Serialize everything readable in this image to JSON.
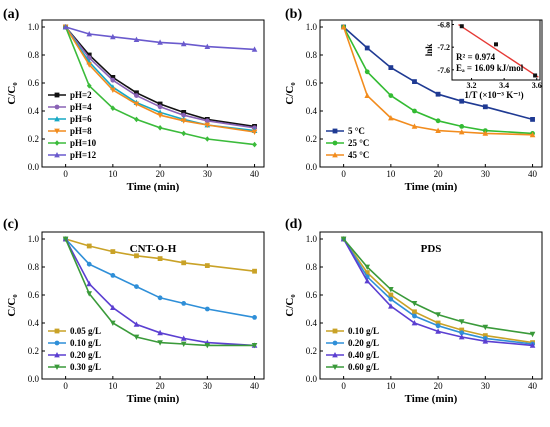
{
  "chart_data": [
    {
      "panel": "(a)",
      "type": "line",
      "title": "",
      "xlabel": "Time (min)",
      "ylabel": "C/C₀",
      "xlim": [
        -5,
        42
      ],
      "ylim": [
        0.0,
        1.05
      ],
      "xticks": [
        0,
        10,
        20,
        30,
        40
      ],
      "yticks": [
        0.0,
        0.2,
        0.4,
        0.6,
        0.8,
        1.0
      ],
      "legend_position": "bottom-left",
      "x": [
        0,
        5,
        10,
        15,
        20,
        25,
        30,
        40
      ],
      "series": [
        {
          "name": "pH=2",
          "color": "#111111",
          "values": [
            1.0,
            0.8,
            0.64,
            0.53,
            0.45,
            0.39,
            0.34,
            0.29
          ]
        },
        {
          "name": "pH=4",
          "color": "#8a63b6",
          "values": [
            1.0,
            0.78,
            0.62,
            0.51,
            0.43,
            0.37,
            0.33,
            0.28
          ]
        },
        {
          "name": "pH=6",
          "color": "#16a8c4",
          "values": [
            1.0,
            0.75,
            0.57,
            0.46,
            0.39,
            0.34,
            0.3,
            0.26
          ]
        },
        {
          "name": "pH=8",
          "color": "#f28c1e",
          "values": [
            1.0,
            0.73,
            0.55,
            0.45,
            0.37,
            0.33,
            0.3,
            0.25
          ]
        },
        {
          "name": "pH=10",
          "color": "#3bbb3b",
          "values": [
            1.0,
            0.58,
            0.42,
            0.34,
            0.28,
            0.24,
            0.2,
            0.16
          ]
        },
        {
          "name": "pH=12",
          "color": "#6a5acd",
          "values": [
            1.0,
            0.95,
            0.93,
            0.91,
            0.89,
            0.88,
            0.86,
            0.84
          ]
        }
      ]
    },
    {
      "panel": "(b)",
      "type": "line",
      "title": "",
      "xlabel": "Time (min)",
      "ylabel": "C/C₀",
      "xlim": [
        -5,
        42
      ],
      "ylim": [
        0.0,
        1.05
      ],
      "xticks": [
        0,
        10,
        20,
        30,
        40
      ],
      "yticks": [
        0.0,
        0.2,
        0.4,
        0.6,
        0.8,
        1.0
      ],
      "legend_position": "bottom-left",
      "x": [
        0,
        5,
        10,
        15,
        20,
        25,
        30,
        40
      ],
      "series": [
        {
          "name": "5 °C",
          "color": "#1f3a93",
          "values": [
            1.0,
            0.85,
            0.71,
            0.61,
            0.52,
            0.47,
            0.43,
            0.34
          ]
        },
        {
          "name": "25 °C",
          "color": "#33bb33",
          "values": [
            1.0,
            0.68,
            0.51,
            0.4,
            0.33,
            0.29,
            0.26,
            0.24
          ]
        },
        {
          "name": "45 °C",
          "color": "#f28c1e",
          "values": [
            1.0,
            0.51,
            0.35,
            0.29,
            0.26,
            0.25,
            0.24,
            0.23
          ]
        }
      ],
      "inset": {
        "type": "scatter",
        "xlabel": "1/T (×10⁻³ K⁻¹)",
        "ylabel": "lnk",
        "xlim": [
          3.08,
          3.62
        ],
        "ylim": [
          -7.78,
          -6.72
        ],
        "xticks": [
          3.2,
          3.4,
          3.6
        ],
        "yticks": [
          -6.8,
          -7.2,
          -7.6
        ],
        "points": [
          {
            "x": 3.14,
            "y": -6.83
          },
          {
            "x": 3.35,
            "y": -7.15
          },
          {
            "x": 3.59,
            "y": -7.7
          }
        ],
        "fit_line": {
          "x": [
            3.12,
            3.61
          ],
          "y": [
            -6.8,
            -7.73
          ],
          "color": "#e53935"
        },
        "annotation_r2": "R² = 0.974",
        "annotation_ea": "Eₐ = 16.09 kJ/mol"
      }
    },
    {
      "panel": "(c)",
      "type": "line",
      "title": "CNT-O-H",
      "xlabel": "Time (min)",
      "ylabel": "C/C₀",
      "xlim": [
        -5,
        42
      ],
      "ylim": [
        0.0,
        1.05
      ],
      "xticks": [
        0,
        10,
        20,
        30,
        40
      ],
      "yticks": [
        0.0,
        0.2,
        0.4,
        0.6,
        0.8,
        1.0
      ],
      "legend_position": "bottom-left",
      "x": [
        0,
        5,
        10,
        15,
        20,
        25,
        30,
        40
      ],
      "series": [
        {
          "name": "0.05 g/L",
          "color": "#c9a227",
          "values": [
            1.0,
            0.95,
            0.91,
            0.88,
            0.86,
            0.83,
            0.81,
            0.77
          ]
        },
        {
          "name": "0.10 g/L",
          "color": "#2f8fd8",
          "values": [
            1.0,
            0.82,
            0.74,
            0.66,
            0.58,
            0.54,
            0.5,
            0.44
          ]
        },
        {
          "name": "0.20 g/L",
          "color": "#5b3fd1",
          "values": [
            1.0,
            0.68,
            0.51,
            0.39,
            0.33,
            0.29,
            0.26,
            0.24
          ]
        },
        {
          "name": "0.30 g/L",
          "color": "#3a9a3a",
          "values": [
            1.0,
            0.61,
            0.4,
            0.3,
            0.26,
            0.25,
            0.24,
            0.24
          ]
        }
      ]
    },
    {
      "panel": "(d)",
      "type": "line",
      "title": "PDS",
      "xlabel": "Time (min)",
      "ylabel": "C/C₀",
      "xlim": [
        -5,
        42
      ],
      "ylim": [
        0.0,
        1.05
      ],
      "xticks": [
        0,
        10,
        20,
        30,
        40
      ],
      "yticks": [
        0.0,
        0.2,
        0.4,
        0.6,
        0.8,
        1.0
      ],
      "legend_position": "bottom-left",
      "x": [
        0,
        5,
        10,
        15,
        20,
        25,
        30,
        40
      ],
      "series": [
        {
          "name": "0.10 g/L",
          "color": "#c9a227",
          "values": [
            1.0,
            0.76,
            0.6,
            0.48,
            0.4,
            0.35,
            0.31,
            0.26
          ]
        },
        {
          "name": "0.20 g/L",
          "color": "#2f8fd8",
          "values": [
            1.0,
            0.73,
            0.57,
            0.45,
            0.38,
            0.33,
            0.29,
            0.25
          ]
        },
        {
          "name": "0.40 g/L",
          "color": "#5b3fd1",
          "values": [
            1.0,
            0.7,
            0.52,
            0.4,
            0.34,
            0.3,
            0.27,
            0.24
          ]
        },
        {
          "name": "0.60 g/L",
          "color": "#3a9a3a",
          "values": [
            1.0,
            0.8,
            0.64,
            0.54,
            0.46,
            0.41,
            0.37,
            0.32
          ]
        }
      ]
    }
  ]
}
